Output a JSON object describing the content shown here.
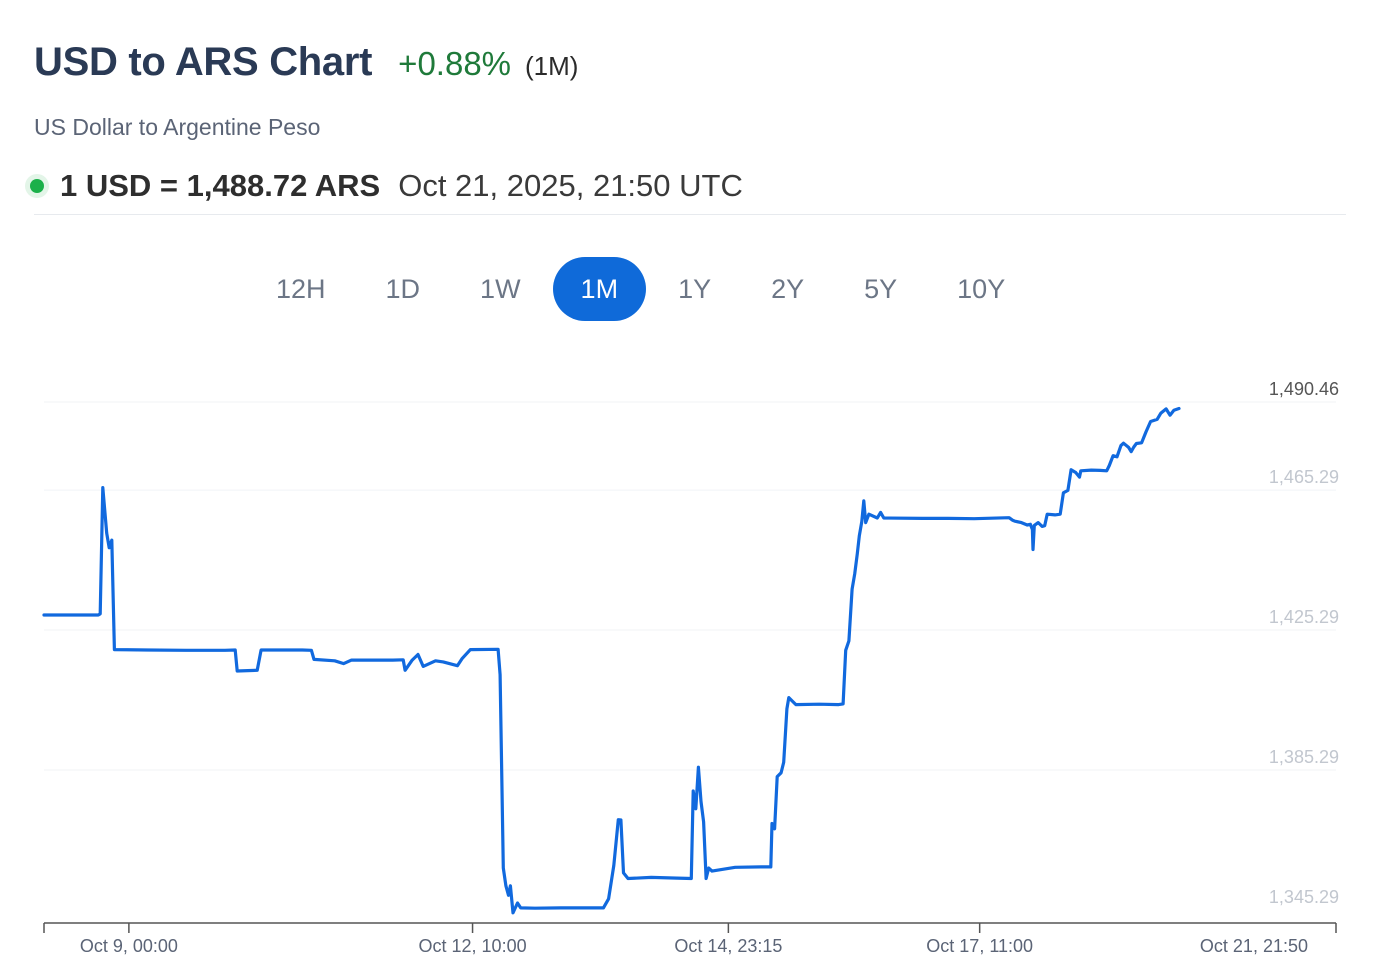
{
  "header": {
    "title": "USD to ARS Chart",
    "change": "+0.88%",
    "period": "(1M)",
    "subtitle": "US Dollar to Argentine Peso"
  },
  "rate": {
    "value": "1 USD = 1,488.72 ARS",
    "timestamp": "Oct 21, 2025, 21:50 UTC"
  },
  "colors": {
    "line": "#1169de",
    "accent": "#0f6ad9",
    "positive": "#1f7a3a",
    "live_dot": "#1bb04a"
  },
  "range_tabs": [
    {
      "label": "12H",
      "active": false
    },
    {
      "label": "1D",
      "active": false
    },
    {
      "label": "1W",
      "active": false
    },
    {
      "label": "1M",
      "active": true
    },
    {
      "label": "1Y",
      "active": false
    },
    {
      "label": "2Y",
      "active": false
    },
    {
      "label": "5Y",
      "active": false
    },
    {
      "label": "10Y",
      "active": false
    }
  ],
  "chart_data": {
    "type": "line",
    "ylim": [
      1345.29,
      1490.46
    ],
    "y_ticks": [
      "1,490.46",
      "1,465.29",
      "1,425.29",
      "1,385.29",
      "1,345.29"
    ],
    "y_tick_values": [
      1490.46,
      1465.29,
      1425.29,
      1385.29,
      1345.29
    ],
    "x_ticks": [
      "Oct 9, 00:00",
      "Oct 12, 10:00",
      "Oct 14, 23:15",
      "Oct 17, 11:00",
      "Oct 21, 21:50"
    ],
    "x_tick_values": [
      0.0657,
      0.3317,
      0.5297,
      0.7242,
      1.0
    ],
    "xlim": [
      0,
      1
    ],
    "series": [
      {
        "points": [
          [
            0.0,
            1429.6
          ],
          [
            0.042,
            1429.6
          ],
          [
            0.0435,
            1429.9
          ],
          [
            0.0455,
            1466.0
          ],
          [
            0.0485,
            1453.0
          ],
          [
            0.0505,
            1448.8
          ],
          [
            0.0525,
            1451.0
          ],
          [
            0.0545,
            1419.7
          ],
          [
            0.08,
            1419.6
          ],
          [
            0.11,
            1419.5
          ],
          [
            0.14,
            1419.5
          ],
          [
            0.148,
            1419.6
          ],
          [
            0.1495,
            1413.6
          ],
          [
            0.165,
            1413.8
          ],
          [
            0.168,
            1419.6
          ],
          [
            0.2,
            1419.6
          ],
          [
            0.207,
            1419.5
          ],
          [
            0.209,
            1416.9
          ],
          [
            0.225,
            1416.5
          ],
          [
            0.232,
            1415.7
          ],
          [
            0.238,
            1416.7
          ],
          [
            0.27,
            1416.7
          ],
          [
            0.278,
            1416.8
          ],
          [
            0.2795,
            1413.8
          ],
          [
            0.285,
            1416.7
          ],
          [
            0.2895,
            1418.3
          ],
          [
            0.2935,
            1414.9
          ],
          [
            0.303,
            1416.5
          ],
          [
            0.309,
            1416.2
          ],
          [
            0.32,
            1415.1
          ],
          [
            0.3235,
            1417.1
          ],
          [
            0.33,
            1419.7
          ],
          [
            0.3515,
            1419.8
          ],
          [
            0.353,
            1412.5
          ],
          [
            0.3555,
            1357.3
          ],
          [
            0.3575,
            1352.2
          ],
          [
            0.3595,
            1349.5
          ],
          [
            0.361,
            1352.2
          ],
          [
            0.363,
            1344.5
          ],
          [
            0.3665,
            1347.3
          ],
          [
            0.369,
            1345.9
          ],
          [
            0.38,
            1345.8
          ],
          [
            0.4,
            1345.9
          ],
          [
            0.42,
            1345.9
          ],
          [
            0.433,
            1345.9
          ],
          [
            0.437,
            1348.5
          ],
          [
            0.441,
            1358.0
          ],
          [
            0.4445,
            1371.1
          ],
          [
            0.4465,
            1371.0
          ],
          [
            0.4485,
            1355.9
          ],
          [
            0.452,
            1354.3
          ],
          [
            0.47,
            1354.6
          ],
          [
            0.49,
            1354.4
          ],
          [
            0.501,
            1354.3
          ],
          [
            0.5025,
            1379.3
          ],
          [
            0.5045,
            1374.2
          ],
          [
            0.5065,
            1386.1
          ],
          [
            0.5085,
            1376.3
          ],
          [
            0.5105,
            1370.5
          ],
          [
            0.5125,
            1354.3
          ],
          [
            0.5145,
            1357.3
          ],
          [
            0.517,
            1356.4
          ],
          [
            0.535,
            1357.5
          ],
          [
            0.555,
            1357.6
          ],
          [
            0.5625,
            1357.6
          ],
          [
            0.5635,
            1370.0
          ],
          [
            0.5655,
            1368.5
          ],
          [
            0.5675,
            1383.4
          ],
          [
            0.5705,
            1384.5
          ],
          [
            0.5725,
            1387.5
          ],
          [
            0.575,
            1402.8
          ],
          [
            0.5765,
            1406.0
          ],
          [
            0.582,
            1404.0
          ],
          [
            0.6,
            1404.1
          ],
          [
            0.615,
            1404.0
          ],
          [
            0.6185,
            1404.2
          ],
          [
            0.6205,
            1419.5
          ],
          [
            0.623,
            1422.2
          ],
          [
            0.6255,
            1437.0
          ],
          [
            0.6275,
            1441.3
          ],
          [
            0.6295,
            1447.1
          ],
          [
            0.631,
            1452.2
          ],
          [
            0.633,
            1456.3
          ],
          [
            0.6345,
            1462.2
          ],
          [
            0.636,
            1456.0
          ],
          [
            0.6385,
            1458.4
          ],
          [
            0.645,
            1457.3
          ],
          [
            0.6475,
            1458.9
          ],
          [
            0.65,
            1457.3
          ],
          [
            0.68,
            1457.2
          ],
          [
            0.7,
            1457.2
          ],
          [
            0.72,
            1457.1
          ],
          [
            0.747,
            1457.4
          ],
          [
            0.7495,
            1456.7
          ],
          [
            0.7515,
            1456.4
          ],
          [
            0.7565,
            1456.0
          ],
          [
            0.761,
            1455.3
          ],
          [
            0.7635,
            1455.5
          ],
          [
            0.765,
            1454.0
          ],
          [
            0.7655,
            1448.3
          ],
          [
            0.7665,
            1455.2
          ],
          [
            0.7695,
            1456.0
          ],
          [
            0.7725,
            1454.9
          ],
          [
            0.7745,
            1455.1
          ],
          [
            0.7765,
            1458.4
          ],
          [
            0.7825,
            1458.2
          ],
          [
            0.7865,
            1458.4
          ],
          [
            0.789,
            1464.5
          ],
          [
            0.7925,
            1465.2
          ],
          [
            0.795,
            1471.1
          ],
          [
            0.7985,
            1470.3
          ],
          [
            0.8015,
            1469.0
          ],
          [
            0.8025,
            1470.8
          ],
          [
            0.8105,
            1471.0
          ],
          [
            0.8175,
            1470.9
          ],
          [
            0.8225,
            1470.8
          ],
          [
            0.8245,
            1472.3
          ],
          [
            0.8275,
            1475.1
          ],
          [
            0.8305,
            1474.8
          ],
          [
            0.8335,
            1478.0
          ],
          [
            0.8355,
            1478.7
          ],
          [
            0.8395,
            1477.5
          ],
          [
            0.8415,
            1476.3
          ],
          [
            0.8435,
            1477.6
          ],
          [
            0.8455,
            1478.6
          ],
          [
            0.8495,
            1478.8
          ],
          [
            0.853,
            1482.0
          ],
          [
            0.8565,
            1484.9
          ],
          [
            0.8615,
            1485.5
          ],
          [
            0.8645,
            1487.3
          ],
          [
            0.8685,
            1488.5
          ],
          [
            0.8715,
            1486.7
          ],
          [
            0.8745,
            1488.1
          ],
          [
            0.8785,
            1488.6
          ]
        ]
      }
    ]
  }
}
